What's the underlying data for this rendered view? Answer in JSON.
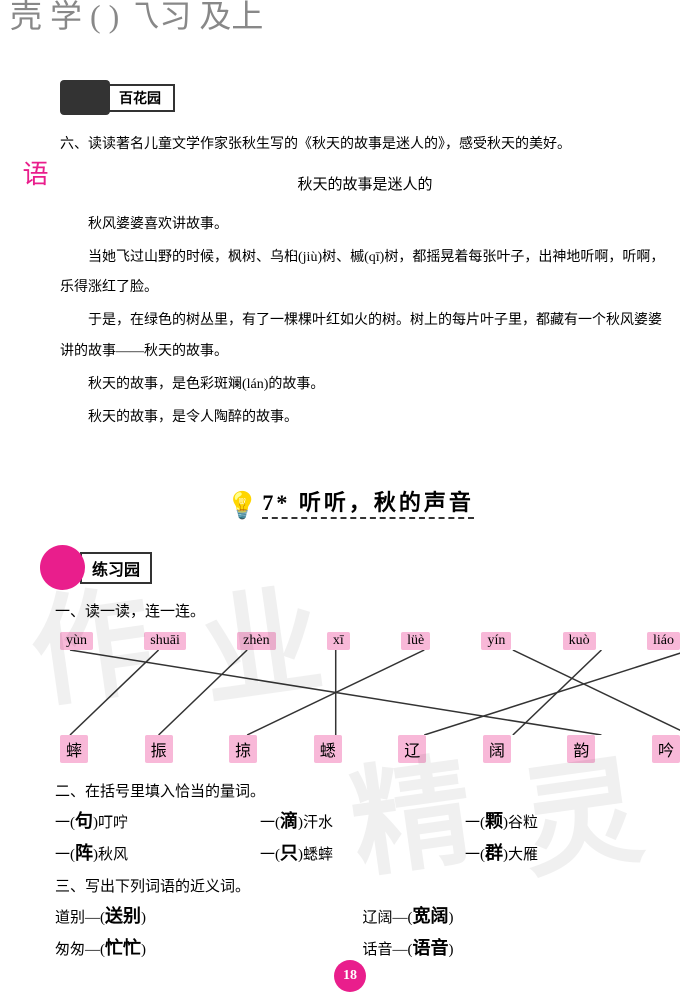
{
  "handwriting_top": "壳 学 ( )\n乁习\n及上",
  "header_box_label": "百花园",
  "side_label": "语",
  "section6": {
    "title": "六、读读著名儿童文学作家张秋生写的《秋天的故事是迷人的》，感受秋天的美好。",
    "passage_title": "秋天的故事是迷人的",
    "p1": "秋风婆婆喜欢讲故事。",
    "p2": "当她飞过山野的时候，枫树、乌桕(jiù)树、槭(qī)树，都摇晃着每张叶子，出神地听啊，听啊，乐得涨红了脸。",
    "p3": "于是，在绿色的树丛里，有了一棵棵叶红如火的树。树上的每片叶子里，都藏有一个秋风婆婆讲的故事——秋天的故事。",
    "p4": "秋天的故事，是色彩斑斓(lán)的故事。",
    "p5": "秋天的故事，是令人陶醉的故事。"
  },
  "lesson": {
    "number": "7*",
    "title": "听听，秋的声音"
  },
  "practice_label": "练习园",
  "ex1": {
    "title": "一、读一读，连一连。",
    "pinyin": [
      "yùn",
      "shuāi",
      "zhèn",
      "xī",
      "lüè",
      "yín",
      "kuò",
      "liáo"
    ],
    "chars": [
      "蟀",
      "振",
      "掠",
      "蟋",
      "辽",
      "阔",
      "韵",
      "吟"
    ],
    "connections": [
      {
        "from": 0,
        "to": 6
      },
      {
        "from": 1,
        "to": 0
      },
      {
        "from": 2,
        "to": 1
      },
      {
        "from": 3,
        "to": 3
      },
      {
        "from": 4,
        "to": 2
      },
      {
        "from": 5,
        "to": 7
      },
      {
        "from": 6,
        "to": 5
      },
      {
        "from": 7,
        "to": 4
      }
    ],
    "line_color": "#333333"
  },
  "ex2": {
    "title": "二、在括号里填入恰当的量词。",
    "items": [
      {
        "prefix": "一(",
        "ans": "句",
        "suffix": ")叮咛"
      },
      {
        "prefix": "一(",
        "ans": "滴",
        "suffix": ")汗水"
      },
      {
        "prefix": "一(",
        "ans": "颗",
        "suffix": ")谷粒"
      },
      {
        "prefix": "一(",
        "ans": "阵",
        "suffix": ")秋风"
      },
      {
        "prefix": "一(",
        "ans": "只",
        "suffix": ")蟋蟀"
      },
      {
        "prefix": "一(",
        "ans": "群",
        "suffix": ")大雁"
      }
    ]
  },
  "ex3": {
    "title": "三、写出下列词语的近义词。",
    "items": [
      {
        "word": "道别",
        "ans": "送别"
      },
      {
        "word": "辽阔",
        "ans": "宽阔"
      },
      {
        "word": "匆匆",
        "ans": "忙忙"
      },
      {
        "word": "话音",
        "ans": "语音"
      }
    ]
  },
  "page_number": "18",
  "watermark_chars": [
    "作",
    "业",
    "精",
    "灵"
  ],
  "colors": {
    "pink": "#e91e8c",
    "pink_bg": "#f8b8d8",
    "text": "#333333"
  }
}
